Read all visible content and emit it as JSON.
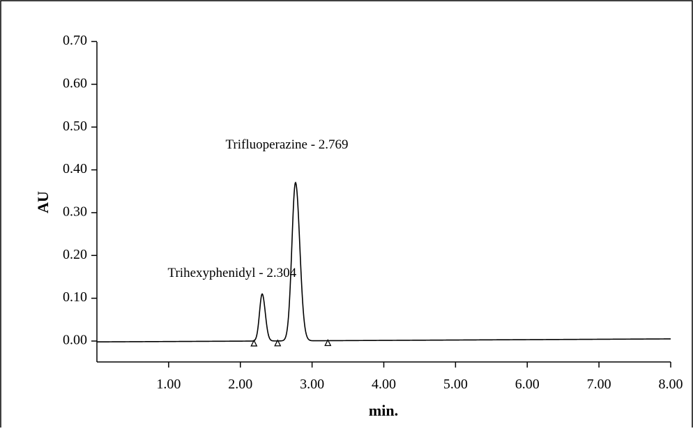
{
  "chart_data": {
    "type": "line",
    "title": "",
    "xlabel": "min.",
    "ylabel": "AU",
    "xlim": [
      0.0,
      8.0
    ],
    "ylim": [
      -0.05,
      0.7
    ],
    "xticks": [
      "1.00",
      "2.00",
      "3.00",
      "4.00",
      "5.00",
      "6.00",
      "7.00",
      "8.00"
    ],
    "yticks": [
      "0.70",
      "0.60",
      "0.50",
      "0.40",
      "0.30",
      "0.20",
      "0.10",
      "0.00"
    ],
    "grid": false,
    "legend": "none",
    "peaks": [
      {
        "label": "Trihexyphenidyl - 2.304",
        "retention_time": 2.304,
        "height": 0.11,
        "start": 2.19,
        "end": 2.52
      },
      {
        "label": "Trifluoperazine - 2.769",
        "retention_time": 2.769,
        "height": 0.37,
        "start": 2.52,
        "end": 3.22
      }
    ],
    "baseline": {
      "start_value": -0.002,
      "end_value": 0.005
    },
    "line_color": "#000000"
  }
}
